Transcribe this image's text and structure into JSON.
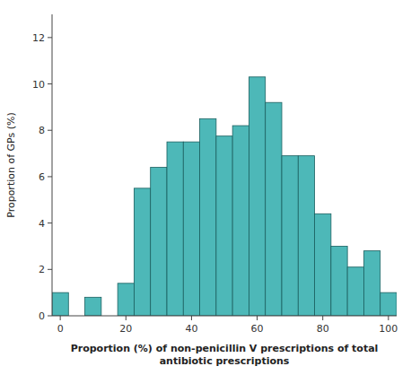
{
  "chart_data": {
    "type": "histogram",
    "bins": [
      -2.5,
      2.5,
      7.5,
      12.5,
      17.5,
      22.5,
      27.5,
      32.5,
      37.5,
      42.5,
      47.5,
      52.5,
      57.5,
      62.5,
      67.5,
      72.5,
      77.5,
      82.5,
      87.5,
      92.5,
      97.5,
      102.5
    ],
    "values": [
      1.0,
      0.0,
      0.8,
      0.0,
      1.4,
      5.5,
      6.4,
      7.5,
      7.5,
      8.5,
      7.75,
      8.2,
      10.3,
      9.2,
      6.9,
      6.9,
      4.4,
      3.0,
      2.1,
      2.8,
      1.0
    ],
    "color": "#4db8b8",
    "xlabel": "Proportion (%) of non-penicillin V prescriptions of total\nantibiotic prescriptions",
    "ylabel": "Proportion of GPs (%)",
    "xlim": [
      -2.5,
      102.5
    ],
    "ylim": [
      0,
      13
    ],
    "xticks": [
      0,
      20,
      40,
      60,
      80,
      100
    ],
    "yticks": [
      0,
      2,
      4,
      6,
      8,
      10,
      12
    ],
    "grid": false
  }
}
